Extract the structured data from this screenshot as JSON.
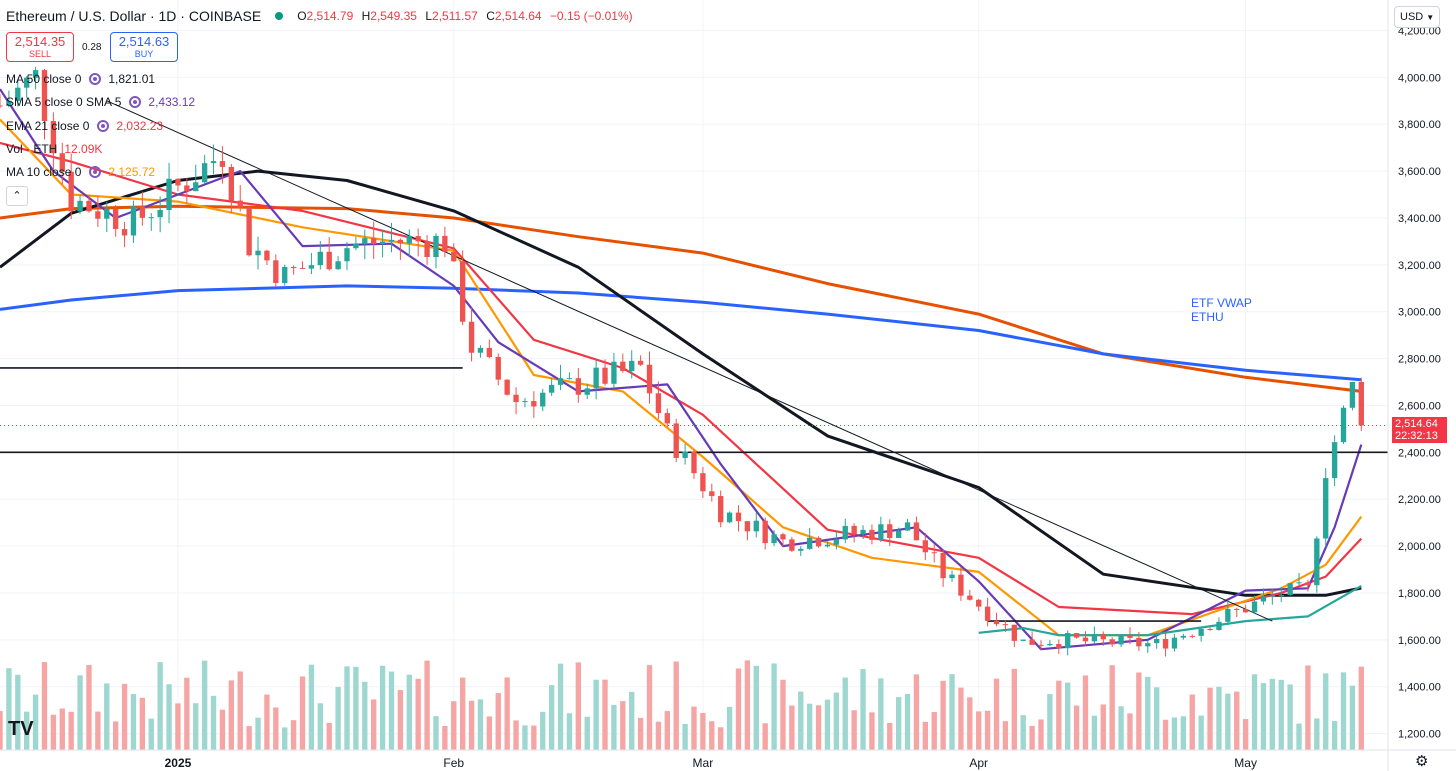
{
  "header": {
    "title": "Ethereum / U.S. Dollar · 1D · COINBASE",
    "ohlc": {
      "o_label": "O",
      "o": "2,514.79",
      "h_label": "H",
      "h": "2,549.35",
      "l_label": "L",
      "l": "2,511.57",
      "c_label": "C",
      "c": "2,514.64",
      "change": "−0.15 (−0.01%)"
    }
  },
  "trade": {
    "sell_price": "2,514.35",
    "sell_label": "SELL",
    "spread": "0.28",
    "buy_price": "2,514.63",
    "buy_label": "BUY"
  },
  "legend": [
    {
      "label": "MA 50 close 0",
      "value": "1,821.01",
      "color": "#131722"
    },
    {
      "label": "SMA 5 close 0 SMA 5",
      "value": "2,433.12",
      "color": "#673ab7"
    },
    {
      "label": "EMA 21 close 0",
      "value": "2,032.23",
      "color": "#f23645"
    },
    {
      "label": "Vol · ETH",
      "value": "12.09K",
      "color": "#f23645"
    },
    {
      "label": "MA 10 close 0",
      "value": "2,125.72",
      "color": "#ff9800"
    }
  ],
  "currency": "USD",
  "logo_text": "TV",
  "last_price": {
    "value": "2,514.64",
    "countdown": "22:32:13"
  },
  "annotation": {
    "line1": "ETF VWAP",
    "line2": "ETHU"
  },
  "chart_data": {
    "type": "candlestick",
    "y_axis": {
      "min": 1130,
      "max": 4330,
      "ticks": [
        1200,
        1400,
        1600,
        1800,
        2000,
        2200,
        2400,
        2600,
        2800,
        3000,
        3200,
        3400,
        3600,
        3800,
        4000,
        4200
      ],
      "tick_labels": [
        "1,200.00",
        "1,400.00",
        "1,600.00",
        "1,800.00",
        "2,000.00",
        "2,200.00",
        "2,400.00",
        "2,600.00",
        "2,800.00",
        "3,000.00",
        "3,200.00",
        "3,400.00",
        "3,600.00",
        "3,800.00",
        "4,000.00",
        "4,200.00"
      ]
    },
    "x_axis": {
      "start": "2024-12-12",
      "end": "2025-05-17",
      "ticks": [
        {
          "date": "2025-01-01",
          "label": "2025",
          "bold": true
        },
        {
          "date": "2025-02-01",
          "label": "Feb"
        },
        {
          "date": "2025-03-01",
          "label": "Mar"
        },
        {
          "date": "2025-04-01",
          "label": "Apr"
        },
        {
          "date": "2025-05-01",
          "label": "May"
        }
      ]
    },
    "anchors": {
      "dates": [
        "2024-12-12",
        "2024-12-16",
        "2024-12-20",
        "2024-12-27",
        "2025-01-06",
        "2025-01-09",
        "2025-01-13",
        "2025-01-20",
        "2025-01-24",
        "2025-01-31",
        "2025-02-03",
        "2025-02-08",
        "2025-02-22",
        "2025-02-25",
        "2025-03-03",
        "2025-03-10",
        "2025-03-24",
        "2025-03-28",
        "2025-04-06",
        "2025-04-09",
        "2025-04-21",
        "2025-05-05",
        "2025-05-08",
        "2025-05-10",
        "2025-05-13",
        "2025-05-14"
      ],
      "closes": [
        3880,
        4000,
        3480,
        3380,
        3680,
        3290,
        3150,
        3280,
        3300,
        3300,
        2850,
        2620,
        2760,
        2480,
        2150,
        2020,
        2080,
        1880,
        1590,
        1600,
        1580,
        1800,
        1810,
        2330,
        2680,
        2514.64
      ]
    },
    "overlays": [
      {
        "name": "MA 200 (orange)",
        "color": "#e65100",
        "dates": [
          "2024-12-12",
          "2024-12-20",
          "2025-01-01",
          "2025-01-20",
          "2025-02-01",
          "2025-02-15",
          "2025-03-01",
          "2025-03-15",
          "2025-04-01",
          "2025-04-15",
          "2025-05-01",
          "2025-05-14"
        ],
        "values": [
          3400,
          3440,
          3450,
          3440,
          3400,
          3320,
          3250,
          3120,
          2990,
          2820,
          2720,
          2660
        ]
      },
      {
        "name": "EMA 200 (blue)",
        "color": "#2962ff",
        "dates": [
          "2024-12-12",
          "2024-12-20",
          "2025-01-01",
          "2025-01-20",
          "2025-02-01",
          "2025-02-15",
          "2025-03-01",
          "2025-03-15",
          "2025-04-01",
          "2025-04-15",
          "2025-05-01",
          "2025-05-14"
        ],
        "values": [
          3010,
          3050,
          3090,
          3110,
          3100,
          3080,
          3040,
          2990,
          2920,
          2820,
          2750,
          2710
        ]
      },
      {
        "name": "MA 50",
        "color": "#131722",
        "dates": [
          "2024-12-12",
          "2024-12-20",
          "2025-01-01",
          "2025-01-10",
          "2025-01-20",
          "2025-02-01",
          "2025-02-15",
          "2025-03-01",
          "2025-03-15",
          "2025-04-01",
          "2025-04-15",
          "2025-05-01",
          "2025-05-10",
          "2025-05-14"
        ],
        "values": [
          3190,
          3420,
          3560,
          3600,
          3560,
          3430,
          3190,
          2820,
          2470,
          2250,
          1880,
          1790,
          1790,
          1821
        ]
      },
      {
        "name": "EMA 21",
        "color": "#f23645",
        "dates": [
          "2024-12-12",
          "2024-12-20",
          "2025-01-01",
          "2025-01-15",
          "2025-02-01",
          "2025-02-10",
          "2025-02-20",
          "2025-03-01",
          "2025-03-15",
          "2025-04-01",
          "2025-04-10",
          "2025-04-25",
          "2025-05-05",
          "2025-05-10",
          "2025-05-14"
        ],
        "values": [
          3720,
          3640,
          3500,
          3430,
          3270,
          2880,
          2760,
          2560,
          2070,
          1950,
          1740,
          1710,
          1800,
          1870,
          2032
        ]
      },
      {
        "name": "MA 10",
        "color": "#ff9800",
        "dates": [
          "2024-12-12",
          "2024-12-20",
          "2025-01-01",
          "2025-01-15",
          "2025-02-01",
          "2025-02-10",
          "2025-02-20",
          "2025-03-01",
          "2025-03-10",
          "2025-03-20",
          "2025-04-01",
          "2025-04-10",
          "2025-04-20",
          "2025-05-05",
          "2025-05-10",
          "2025-05-14"
        ],
        "values": [
          3820,
          3500,
          3470,
          3360,
          3260,
          2730,
          2660,
          2380,
          2080,
          1950,
          1890,
          1620,
          1620,
          1820,
          1920,
          2126
        ]
      },
      {
        "name": "SMA 5",
        "color": "#673ab7",
        "dates": [
          "2024-12-12",
          "2024-12-18",
          "2024-12-25",
          "2025-01-08",
          "2025-01-15",
          "2025-01-25",
          "2025-02-01",
          "2025-02-06",
          "2025-02-15",
          "2025-02-25",
          "2025-03-03",
          "2025-03-10",
          "2025-03-25",
          "2025-04-01",
          "2025-04-08",
          "2025-04-20",
          "2025-05-01",
          "2025-05-08",
          "2025-05-11",
          "2025-05-14"
        ],
        "values": [
          3950,
          3600,
          3400,
          3600,
          3280,
          3290,
          3110,
          2870,
          2660,
          2690,
          2350,
          2000,
          2080,
          1850,
          1560,
          1600,
          1810,
          1820,
          2080,
          2433
        ]
      },
      {
        "name": "MA 200 daily (teal)",
        "color": "#26a69a",
        "dates": [
          "2025-04-01",
          "2025-04-06",
          "2025-04-10",
          "2025-04-20",
          "2025-05-01",
          "2025-05-08",
          "2025-05-14"
        ],
        "values": [
          1630,
          1650,
          1620,
          1620,
          1680,
          1700,
          1830
        ]
      }
    ],
    "trendlines": [
      {
        "type": "ray",
        "color": "#131722",
        "from": {
          "date": "2024-12-24",
          "value": 3900
        },
        "to": {
          "date": "2025-05-04",
          "value": 1680
        }
      },
      {
        "type": "horizontal",
        "color": "#131722",
        "from": {
          "date": "2024-12-12",
          "value": 2760
        },
        "to": {
          "date": "2025-02-02",
          "value": 2760
        }
      },
      {
        "type": "horizontal",
        "color": "#131722",
        "value": 2400,
        "from": {
          "date": "2024-12-12"
        },
        "to": {
          "date": "2025-05-17"
        }
      },
      {
        "type": "horizontal",
        "color": "#131722",
        "value": 1680,
        "from": {
          "date": "2025-04-02"
        },
        "to": {
          "date": "2025-04-26"
        }
      }
    ],
    "volume": {
      "max_height_fraction": 0.24
    }
  }
}
